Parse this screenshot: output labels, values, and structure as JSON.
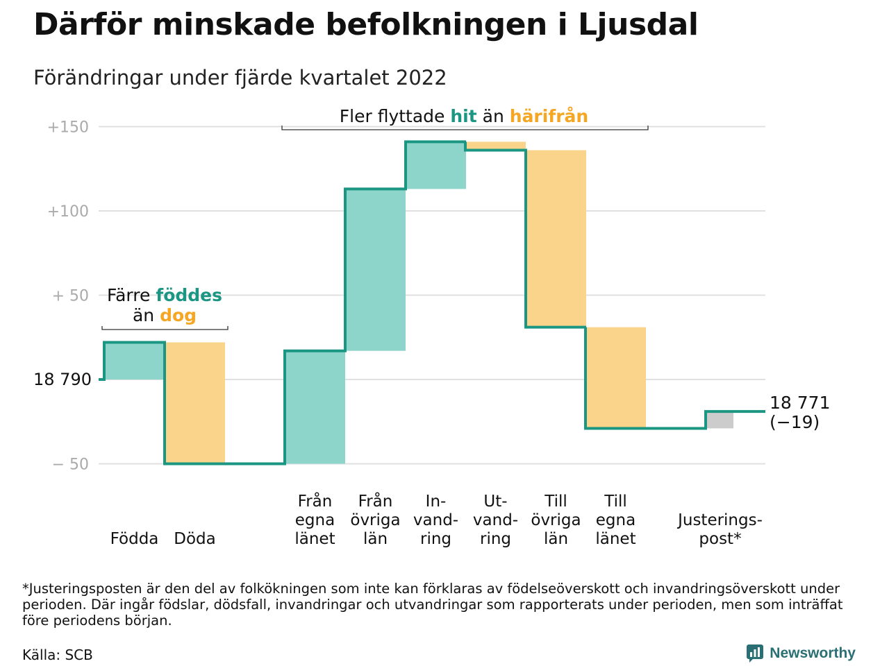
{
  "title": "Därför minskade befolkningen i Ljusdal",
  "subtitle": "Förändringar under fjärde kvartalet 2022",
  "colors": {
    "increase": "#8dd5cb",
    "decrease": "#fad48a",
    "adjustment": "#cccccc",
    "line": "#1a9682",
    "teal_text": "#1a9682",
    "orange_text": "#f5a623",
    "grid": "#e0e0e0",
    "tick": "#aaaaaa"
  },
  "chart_data": {
    "type": "waterfall",
    "ylim": [
      -55,
      155
    ],
    "grid": true,
    "yticks": [
      {
        "value": 150,
        "label": "+150"
      },
      {
        "value": 100,
        "label": "+100"
      },
      {
        "value": 50,
        "label": "+ 50"
      },
      {
        "value": -50,
        "label": "− 50"
      }
    ],
    "start": {
      "population": "18 790",
      "value": 0
    },
    "end": {
      "population": "18 771",
      "change": "(−19)",
      "value": -19
    },
    "steps": [
      {
        "label": [
          "Födda"
        ],
        "from": 0,
        "to": 22,
        "kind": "increase"
      },
      {
        "label": [
          "Döda"
        ],
        "from": 22,
        "to": -50,
        "kind": "decrease"
      },
      {
        "label": [
          "Från",
          "egna",
          "länet"
        ],
        "from": -50,
        "to": 17,
        "kind": "increase"
      },
      {
        "label": [
          "Från",
          "övriga",
          "län"
        ],
        "from": 17,
        "to": 113,
        "kind": "increase"
      },
      {
        "label": [
          "In-",
          "vand-",
          "ring"
        ],
        "from": 113,
        "to": 141,
        "kind": "increase"
      },
      {
        "label": [
          "Ut-",
          "vand-",
          "ring"
        ],
        "from": 141,
        "to": 136,
        "kind": "decrease"
      },
      {
        "label": [
          "Till",
          "övriga",
          "län"
        ],
        "from": 136,
        "to": 31,
        "kind": "decrease"
      },
      {
        "label": [
          "Till",
          "egna",
          "länet"
        ],
        "from": 31,
        "to": -29,
        "kind": "decrease"
      },
      {
        "label": [
          "Justerings-",
          "post*"
        ],
        "from": -29,
        "to": -19,
        "kind": "adjustment"
      }
    ],
    "annotations": [
      {
        "parts": [
          "Färre ",
          "föddes"
        ],
        "styles": [
          "plain",
          "teal"
        ],
        "line2_parts": [
          "än ",
          "dog"
        ],
        "line2_styles": [
          "plain",
          "orange"
        ]
      },
      {
        "parts": [
          "Fler flyttade ",
          "hit",
          " än ",
          "härifrån"
        ],
        "styles": [
          "plain",
          "teal",
          "plain",
          "orange"
        ]
      }
    ]
  },
  "footnote": "*Justeringsposten är den del av folkökningen som inte kan förklaras av födelseöverskott och invandringsöverskott under perioden. Där ingår födslar, dödsfall, invandringar och utvandringar som rapporterats under perioden, men som inträffat före periodens början.",
  "source": "Källa: SCB",
  "brand": {
    "name": "Newsworthy",
    "icon": "newsworthy-logo-icon"
  }
}
